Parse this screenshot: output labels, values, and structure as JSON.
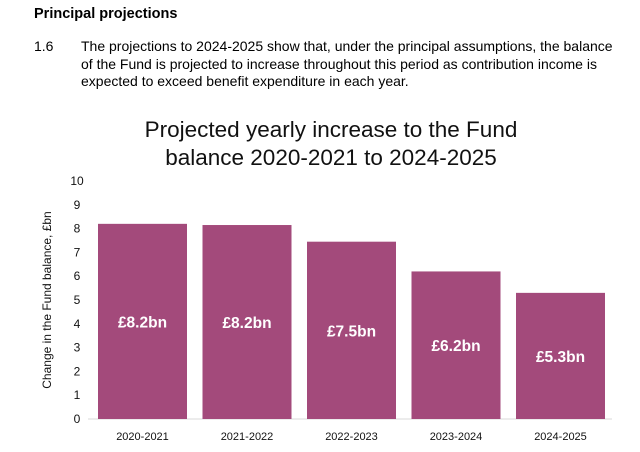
{
  "heading": "Principal projections",
  "paragraph": {
    "number": "1.6",
    "text": "The projections to 2024-2025 show that, under the principal assumptions, the balance of the Fund is projected to increase throughout this period as contribution income is expected to exceed benefit expenditure in each year."
  },
  "chart_data": {
    "type": "bar",
    "title_lines": [
      "Projected yearly increase to the Fund",
      "balance 2020-2021 to 2024-2025"
    ],
    "xlabel": "",
    "ylabel": "Change in the Fund balance, £bn",
    "ylim": [
      0,
      10
    ],
    "yticks": [
      "0",
      "1",
      "2",
      "3",
      "4",
      "5",
      "6",
      "7",
      "8",
      "9",
      "10"
    ],
    "categories": [
      "2020-2021",
      "2021-2022",
      "2022-2023",
      "2023-2024",
      "2024-2025"
    ],
    "values": [
      8.2,
      8.15,
      7.45,
      6.2,
      5.3
    ],
    "data_labels": [
      "£8.2bn",
      "£8.2bn",
      "£7.5bn",
      "£6.2bn",
      "£5.3bn"
    ],
    "bar_color": "#a34a7b",
    "grid": false
  }
}
